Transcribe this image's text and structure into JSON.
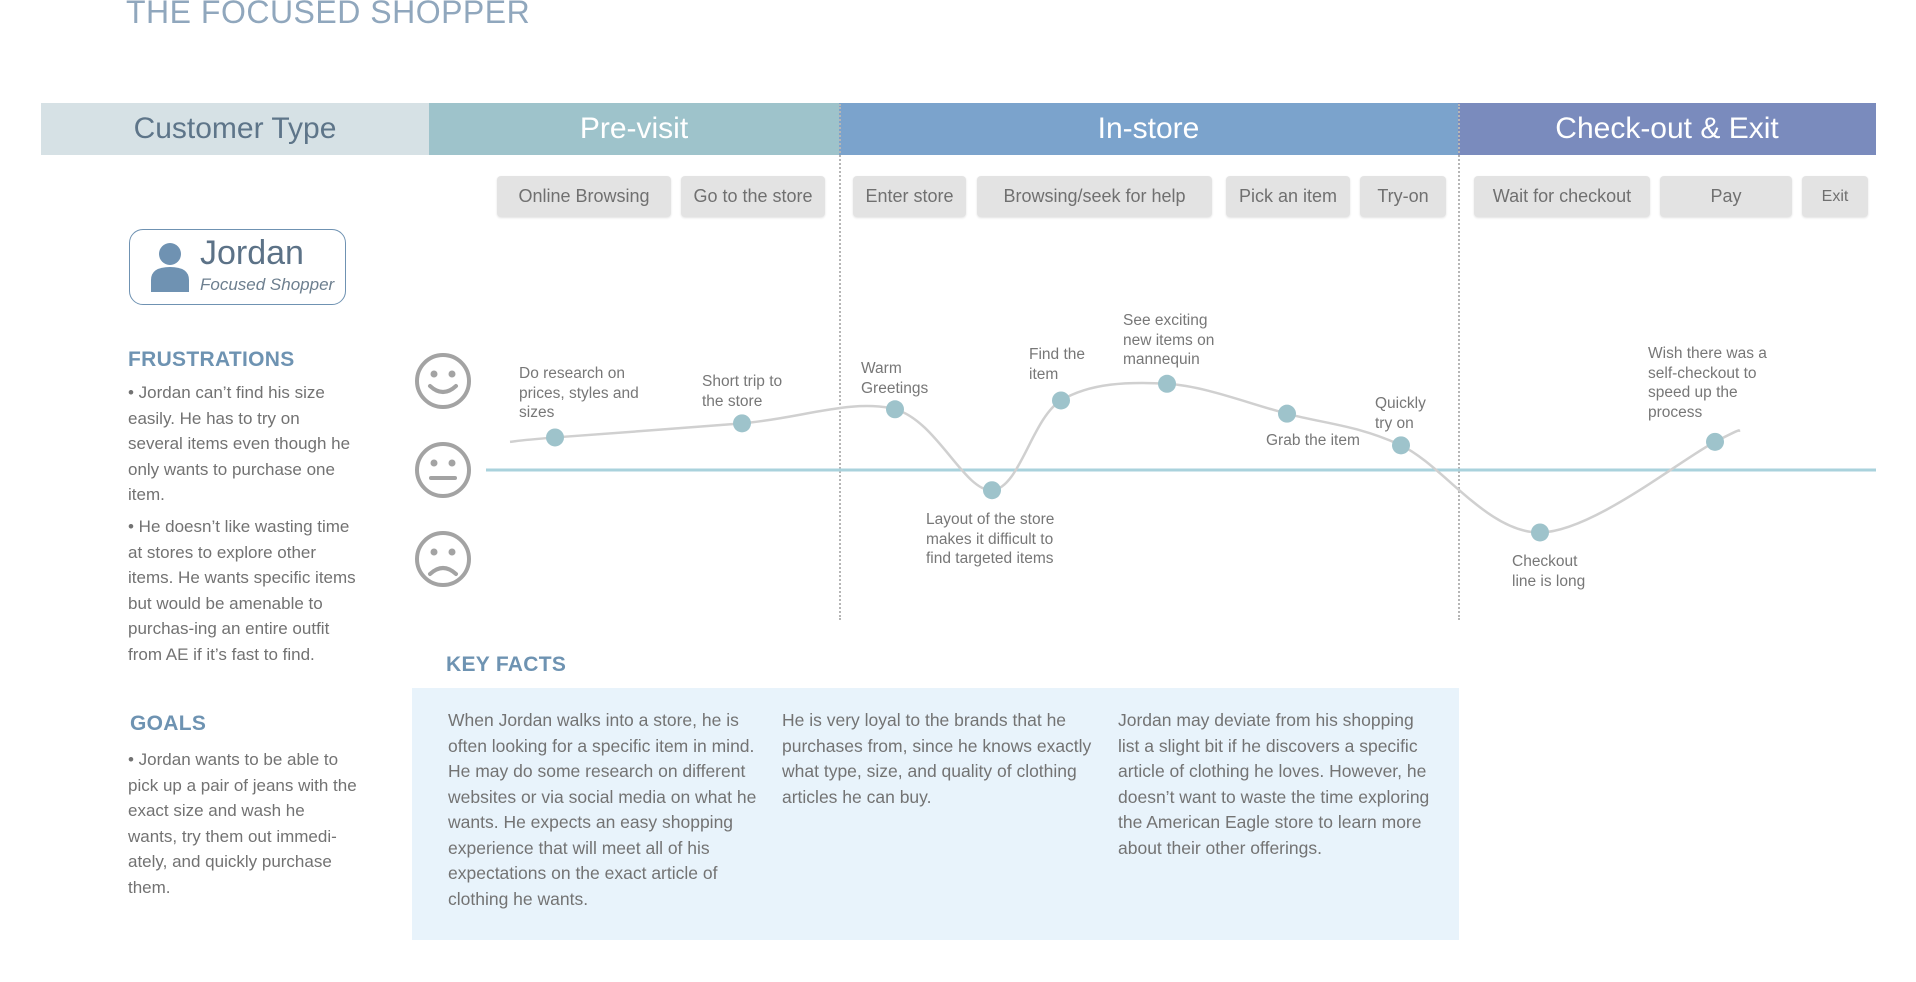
{
  "title": "THE FOCUSED SHOPPER",
  "phases": {
    "customer_type": "Customer Type",
    "previsit": "Pre-visit",
    "instore": "In-store",
    "checkout": "Check-out & Exit"
  },
  "steps": [
    "Online Browsing",
    "Go to the store",
    "Enter store",
    "Browsing/seek for help",
    "Pick an item",
    "Try-on",
    "Wait for checkout",
    "Pay",
    "Exit"
  ],
  "persona": {
    "name": "Jordan",
    "role": "Focused Shopper",
    "icon": "user-icon"
  },
  "frustrations": {
    "heading": "FRUSTRATIONS",
    "items": [
      "• Jordan can’t find his size easily. He has to try on several items even though he only wants to purchase one item.",
      "• He doesn’t like wasting time at stores to explore other items. He wants specific items but would be amenable to purchas-ing an entire outfit from AE if it’s fast to find."
    ]
  },
  "goals": {
    "heading": "GOALS",
    "items": [
      "• Jordan wants to be able to pick up a pair of jeans with the exact size and wash he wants, try them out immedi-ately, and quickly purchase them."
    ]
  },
  "emotion_icons": [
    "happy-face-icon",
    "neutral-face-icon",
    "sad-face-icon"
  ],
  "journey_points": [
    {
      "label": "Do research on prices, styles and sizes",
      "level": 0.37
    },
    {
      "label": "Short trip to the store",
      "level": 0.53
    },
    {
      "label": "Warm Greetings",
      "level": 0.69
    },
    {
      "label": "Layout of the store makes it difficult to find targeted items",
      "level": -0.23
    },
    {
      "label": "Find the item",
      "level": 0.79
    },
    {
      "label": "See exciting new items on mannequin",
      "level": 0.98
    },
    {
      "label": "Grab the item",
      "level": 0.64
    },
    {
      "label": "Quickly try on",
      "level": 0.28
    },
    {
      "label": "Checkout line is long",
      "level": -0.71
    },
    {
      "label": "Wish there was a self-checkout to speed up the process",
      "level": 0.32
    }
  ],
  "key_facts": {
    "heading": "KEY FACTS",
    "columns": [
      "When Jordan walks into a store, he is often looking for a specific item in mind. He may do some research on different websites or via social media on what he wants. He expects an easy shopping experience that will meet all of his expectations on the exact article of clothing he wants.",
      "He is very loyal to the brands that he purchases from, since he knows exactly what type, size, and quality of clothing articles he can buy.",
      "Jordan may deviate from his shopping list a slight bit if he discovers a specific article of clothing he loves. However, he doesn’t want to waste the time exploring the American Eagle store to learn more about their other offerings."
    ]
  },
  "colors": {
    "title": "#90a7bd",
    "customer_band": "#d6e1e5",
    "previsit_band": "#9ec3cb",
    "instore_band": "#7ba3cc",
    "checkout_band": "#7a8bbd",
    "point": "#9ec3cb",
    "baseline": "#a9d2dc",
    "key_facts_bg": "#e8f3fb",
    "heading": "#6e93b2"
  }
}
